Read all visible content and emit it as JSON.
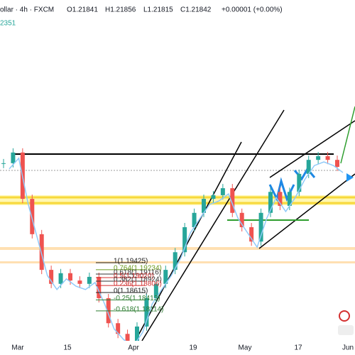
{
  "header": {
    "symbol": "ollar · 4h · FXCM",
    "open": "O1.21841",
    "high": "H1.21856",
    "low": "L1.21815",
    "close": "C1.21842",
    "change": "+0.00001 (+0.00%)",
    "indicator": "2351"
  },
  "price_series": {
    "ylim": [
      1.16916,
      1.26566
    ],
    "values": [
      1.2213,
      1.2242,
      1.2116,
      1.202,
      1.1923,
      1.1885,
      1.1914,
      1.1894,
      1.1885,
      1.1904,
      1.1846,
      1.1778,
      1.1749,
      1.173,
      1.1769,
      1.1846,
      1.1885,
      1.1923,
      1.1971,
      1.2039,
      1.2078,
      1.2116,
      1.2126,
      1.2145,
      1.2078,
      1.2039,
      1.2,
      1.2078,
      1.2135,
      1.2097,
      1.2135,
      1.2184,
      1.2222,
      1.2232,
      1.2222,
      1.2203
    ]
  },
  "fib_levels": [
    {
      "value": 1.19425,
      "label": "1(1.19425)",
      "color": "#222222"
    },
    {
      "value": 1.19234,
      "label": "0.764(1.19234)",
      "color": "#6a9a1f"
    },
    {
      "value": 1.19116,
      "label": "0.618(1.19116)",
      "color": "#333333"
    },
    {
      "value": 1.1902,
      "label": "0.5(1.19020)",
      "color": "#d32f2f"
    },
    {
      "value": 1.18924,
      "label": "0.382(1.18924)",
      "color": "#333333"
    },
    {
      "value": 1.18806,
      "label": "0.236(1.18806)",
      "color": "#d32f2f"
    },
    {
      "value": 1.18615,
      "label": "0(1.18615)",
      "color": "#222222"
    },
    {
      "value": 1.18413,
      "label": "-0.25(1.18413)",
      "color": "#2e7d32"
    },
    {
      "value": 1.18114,
      "label": "-0.618(1.18114)",
      "color": "#2e7d32"
    }
  ],
  "x_axis": [
    "Mar",
    "15",
    "Apr",
    "19",
    "May",
    "17",
    "Jun"
  ]
}
